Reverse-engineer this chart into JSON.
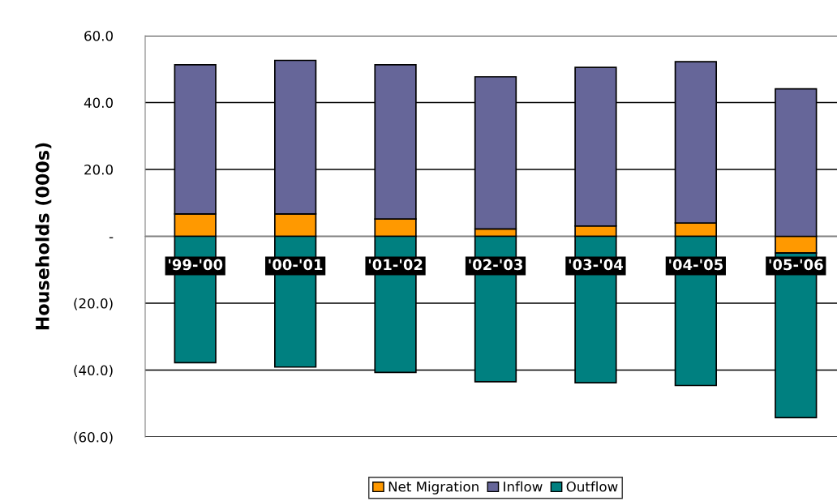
{
  "chart_data": {
    "type": "bar",
    "stacked": true,
    "ylabel": "Households (000s)",
    "categories": [
      "'99-'00",
      "'00-'01",
      "'01-'02",
      "'02-'03",
      "'03-'04",
      "'04-'05",
      "'05-'06"
    ],
    "series": [
      {
        "name": "Net Migration",
        "color": "#ff9900",
        "values": [
          6.7,
          6.7,
          5.2,
          2.2,
          3.1,
          4.0,
          -5.0
        ]
      },
      {
        "name": "Inflow",
        "color": "#666699",
        "values": [
          44.6,
          45.9,
          46.1,
          45.5,
          47.4,
          48.2,
          44.1
        ]
      },
      {
        "name": "Outflow",
        "color": "#008080",
        "values": [
          -37.8,
          -39.1,
          -40.7,
          -43.5,
          -43.8,
          -44.6,
          -49.2
        ]
      }
    ],
    "ylim": [
      -60,
      60
    ],
    "yticks": [
      {
        "value": -60,
        "label": "(60.0)"
      },
      {
        "value": -40,
        "label": "(40.0)"
      },
      {
        "value": -20,
        "label": "(20.0)"
      },
      {
        "value": 0,
        "label": "-"
      },
      {
        "value": 20,
        "label": "20.0"
      },
      {
        "value": 40,
        "label": "40.0"
      },
      {
        "value": 60,
        "label": "60.0"
      }
    ],
    "grid": "y",
    "legend": "bottom"
  }
}
